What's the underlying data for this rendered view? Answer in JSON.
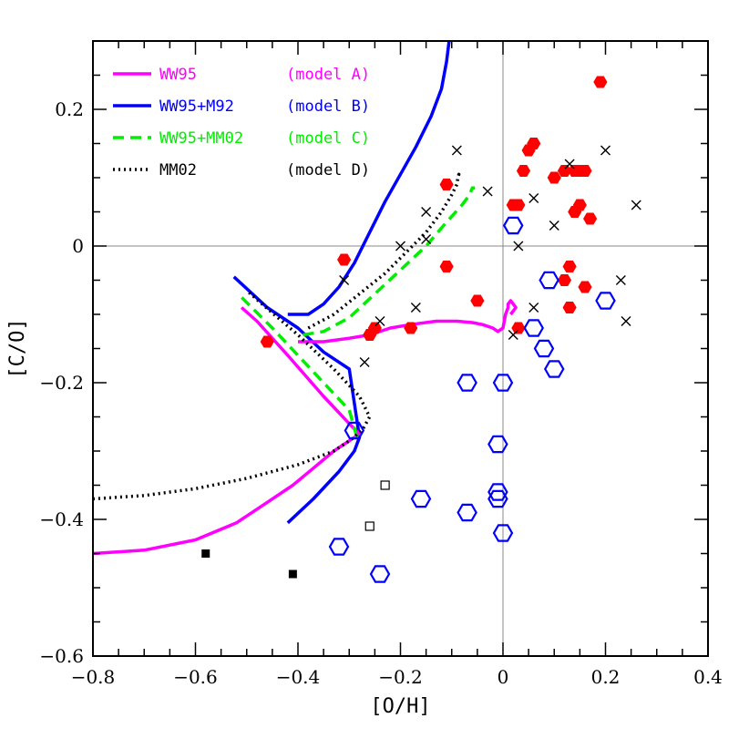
{
  "chart_data": {
    "type": "scatter",
    "xlabel": "[O/H]",
    "ylabel": "[C/O]",
    "xlim": [
      -0.8,
      0.4
    ],
    "ylim": [
      -0.6,
      0.3
    ],
    "x_ticks": [
      "−0.8",
      "−0.6",
      "−0.4",
      "−0.2",
      "0",
      "0.2",
      "0.4"
    ],
    "x_tick_values": [
      -0.8,
      -0.6,
      -0.4,
      -0.2,
      0,
      0.2,
      0.4
    ],
    "y_ticks": [
      "−0.6",
      "−0.4",
      "−0.2",
      "0",
      "0.2"
    ],
    "y_tick_values": [
      -0.6,
      -0.4,
      -0.2,
      0,
      0.2
    ],
    "reference_lines": {
      "x": 0,
      "y": 0
    },
    "legend_position": "top-left",
    "legend": [
      {
        "label": "WW95",
        "model": "(model A)",
        "color": "#ff00ff",
        "dash": "solid"
      },
      {
        "label": "WW95+M92",
        "model": "(model B)",
        "color": "#0000ff",
        "dash": "solid"
      },
      {
        "label": "WW95+MM02",
        "model": "(model C)",
        "color": "#00ee00",
        "dash": "dashed"
      },
      {
        "label": "MM02",
        "model": "(model D)",
        "color": "#000000",
        "dash": "dotted"
      }
    ],
    "series": [
      {
        "color": "#0000ff",
        "dash": "solid",
        "kind": "line",
        "x": [
          -0.525,
          -0.46,
          -0.4,
          -0.35,
          -0.3,
          -0.28,
          -0.29,
          -0.32,
          -0.37,
          -0.42
        ],
        "y": [
          -0.045,
          -0.09,
          -0.12,
          -0.155,
          -0.18,
          -0.28,
          -0.3,
          -0.33,
          -0.37,
          -0.405
        ]
      },
      {
        "color": "#0000ff",
        "dash": "solid",
        "kind": "line",
        "x": [
          -0.42,
          -0.38,
          -0.35,
          -0.32,
          -0.29,
          -0.26,
          -0.23,
          -0.2,
          -0.17,
          -0.14,
          -0.12,
          -0.11,
          -0.105
        ],
        "y": [
          -0.1,
          -0.1,
          -0.085,
          -0.06,
          -0.025,
          0.02,
          0.065,
          0.105,
          0.145,
          0.19,
          0.23,
          0.27,
          0.3
        ]
      },
      {
        "color": "#ff00ff",
        "dash": "solid",
        "kind": "line",
        "x": [
          -0.8,
          -0.7,
          -0.6,
          -0.52,
          -0.46,
          -0.41,
          -0.37,
          -0.33,
          -0.28,
          -0.3,
          -0.35,
          -0.42,
          -0.48,
          -0.51
        ],
        "y": [
          -0.45,
          -0.445,
          -0.43,
          -0.405,
          -0.375,
          -0.35,
          -0.325,
          -0.3,
          -0.275,
          -0.26,
          -0.22,
          -0.16,
          -0.11,
          -0.09
        ]
      },
      {
        "color": "#ff00ff",
        "dash": "solid",
        "kind": "line",
        "x": [
          -0.4,
          -0.35,
          -0.3,
          -0.26,
          -0.22,
          -0.18,
          -0.13,
          -0.09,
          -0.06,
          -0.04,
          -0.02,
          -0.01,
          0.0,
          0.005,
          0.01,
          0.01,
          0.015,
          0.02,
          0.025,
          0.02,
          0.015
        ],
        "y": [
          -0.14,
          -0.14,
          -0.135,
          -0.13,
          -0.12,
          -0.115,
          -0.11,
          -0.11,
          -0.112,
          -0.115,
          -0.12,
          -0.125,
          -0.12,
          -0.1,
          -0.09,
          -0.085,
          -0.08,
          -0.085,
          -0.09,
          -0.095,
          -0.1
        ]
      },
      {
        "color": "#00ee00",
        "dash": "dashed",
        "kind": "line",
        "x": [
          -0.285,
          -0.3,
          -0.35,
          -0.4,
          -0.45,
          -0.51
        ],
        "y": [
          -0.28,
          -0.24,
          -0.2,
          -0.16,
          -0.12,
          -0.075
        ]
      },
      {
        "color": "#00ee00",
        "dash": "dashed",
        "kind": "line",
        "x": [
          -0.39,
          -0.35,
          -0.3,
          -0.25,
          -0.2,
          -0.15,
          -0.11,
          -0.08,
          -0.065,
          -0.06,
          -0.055
        ],
        "y": [
          -0.13,
          -0.125,
          -0.105,
          -0.07,
          -0.035,
          0.0,
          0.035,
          0.06,
          0.075,
          0.085,
          0.085
        ]
      },
      {
        "color": "#000000",
        "dash": "dotted",
        "kind": "line",
        "x": [
          -0.8,
          -0.7,
          -0.6,
          -0.5,
          -0.4,
          -0.33,
          -0.3,
          -0.275,
          -0.26,
          -0.28,
          -0.33,
          -0.4,
          -0.47,
          -0.5
        ],
        "y": [
          -0.37,
          -0.365,
          -0.355,
          -0.34,
          -0.32,
          -0.3,
          -0.285,
          -0.27,
          -0.25,
          -0.22,
          -0.18,
          -0.13,
          -0.085,
          -0.065
        ]
      },
      {
        "color": "#000000",
        "dash": "dotted",
        "kind": "line",
        "x": [
          -0.38,
          -0.33,
          -0.28,
          -0.23,
          -0.19,
          -0.15,
          -0.12,
          -0.1,
          -0.09,
          -0.088,
          -0.086,
          -0.087,
          -0.09
        ],
        "y": [
          -0.12,
          -0.1,
          -0.07,
          -0.04,
          -0.01,
          0.02,
          0.05,
          0.075,
          0.09,
          0.1,
          0.105,
          0.102,
          0.1
        ]
      },
      {
        "name": "red-hexagons",
        "color": "#ff0000",
        "marker": "filled-hexagon",
        "x": [
          -0.46,
          -0.31,
          -0.26,
          -0.25,
          -0.18,
          -0.11,
          -0.11,
          -0.05,
          0.02,
          0.03,
          0.03,
          0.04,
          0.05,
          0.06,
          0.1,
          0.12,
          0.12,
          0.13,
          0.13,
          0.14,
          0.14,
          0.15,
          0.15,
          0.16,
          0.16,
          0.17,
          0.19
        ],
        "y": [
          -0.14,
          -0.02,
          -0.13,
          -0.12,
          -0.12,
          0.09,
          -0.03,
          -0.08,
          0.06,
          -0.12,
          0.06,
          0.11,
          0.14,
          0.15,
          0.1,
          0.11,
          -0.05,
          -0.03,
          -0.09,
          0.05,
          0.11,
          0.06,
          0.11,
          -0.06,
          0.11,
          0.04,
          0.24
        ]
      },
      {
        "name": "blue-open-hexagons",
        "color": "#0000ff",
        "marker": "open-hexagon",
        "x": [
          -0.32,
          -0.29,
          -0.24,
          -0.16,
          -0.07,
          -0.07,
          -0.01,
          -0.01,
          -0.01,
          0.0,
          0.0,
          0.02,
          0.06,
          0.08,
          0.09,
          0.1,
          0.2
        ],
        "y": [
          -0.44,
          -0.27,
          -0.48,
          -0.37,
          -0.2,
          -0.39,
          -0.37,
          -0.29,
          -0.36,
          -0.2,
          -0.42,
          0.03,
          -0.12,
          -0.15,
          -0.05,
          -0.18,
          -0.08
        ]
      },
      {
        "name": "crosses",
        "color": "#000000",
        "marker": "cross",
        "x": [
          -0.31,
          -0.27,
          -0.24,
          -0.2,
          -0.17,
          -0.15,
          -0.15,
          -0.09,
          -0.03,
          0.02,
          0.03,
          0.06,
          0.06,
          0.1,
          0.13,
          0.2,
          0.23,
          0.24,
          0.26
        ],
        "y": [
          -0.05,
          -0.17,
          -0.11,
          0.0,
          -0.09,
          0.05,
          0.01,
          0.14,
          0.08,
          -0.13,
          0.0,
          0.07,
          -0.09,
          0.03,
          0.12,
          0.14,
          -0.05,
          -0.11,
          0.06
        ]
      },
      {
        "name": "open-squares",
        "color": "#000000",
        "marker": "open-square",
        "x": [
          -0.26,
          -0.23
        ],
        "y": [
          -0.41,
          -0.35
        ]
      },
      {
        "name": "filled-squares",
        "color": "#000000",
        "marker": "filled-square",
        "x": [
          -0.58,
          -0.41
        ],
        "y": [
          -0.45,
          -0.48
        ]
      }
    ]
  }
}
